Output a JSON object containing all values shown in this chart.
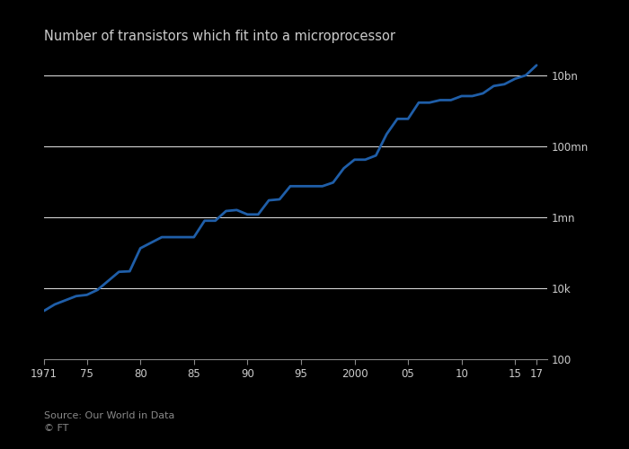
{
  "title": "Number of transistors which fit into a microprocessor",
  "source_line1": "Source: Our World in Data",
  "source_line2": "© FT",
  "line_color": "#1f5ea8",
  "background_color": "#000000",
  "plot_bg_color": "#000000",
  "grid_color": "#ffffff",
  "title_fontsize": 10.5,
  "source_fontsize": 8,
  "tick_label_color": "#cccccc",
  "title_color": "#cccccc",
  "ytick_labels": [
    "100",
    "10k",
    "1mn",
    "100mn",
    "10bn"
  ],
  "ytick_values": [
    100,
    10000,
    1000000,
    100000000,
    10000000000
  ],
  "ylim": [
    100,
    30000000000
  ],
  "xlim": [
    1971,
    2018
  ],
  "xtick_values": [
    1971,
    1975,
    1980,
    1985,
    1990,
    1995,
    2000,
    2005,
    2010,
    2015,
    2017
  ],
  "xtick_labels": [
    "1971",
    "75",
    "80",
    "85",
    "90",
    "95",
    "2000",
    "05",
    "10",
    "15",
    "17"
  ],
  "data_years": [
    1971,
    1972,
    1974,
    1975,
    1976,
    1978,
    1979,
    1980,
    1982,
    1984,
    1985,
    1986,
    1987,
    1988,
    1989,
    1990,
    1991,
    1992,
    1993,
    1994,
    1995,
    1996,
    1997,
    1998,
    1999,
    2000,
    2001,
    2002,
    2003,
    2004,
    2005,
    2006,
    2007,
    2008,
    2009,
    2010,
    2011,
    2012,
    2013,
    2014,
    2015,
    2016,
    2017
  ],
  "data_transistors": [
    2308,
    3500,
    6000,
    6500,
    9000,
    29000,
    30000,
    134000,
    275000,
    275000,
    275000,
    800000,
    800000,
    1500000,
    1600000,
    1200000,
    1200000,
    3000000,
    3200000,
    7500000,
    7500000,
    7500000,
    7500000,
    9500000,
    24000000,
    42000000,
    42000000,
    55000000,
    220000000,
    592000000,
    592000000,
    1700000000,
    1700000000,
    2000000000,
    2000000000,
    2600000000,
    2600000000,
    3100000000,
    5000000000,
    5600000000,
    8000000000,
    10000000000,
    19200000000
  ]
}
